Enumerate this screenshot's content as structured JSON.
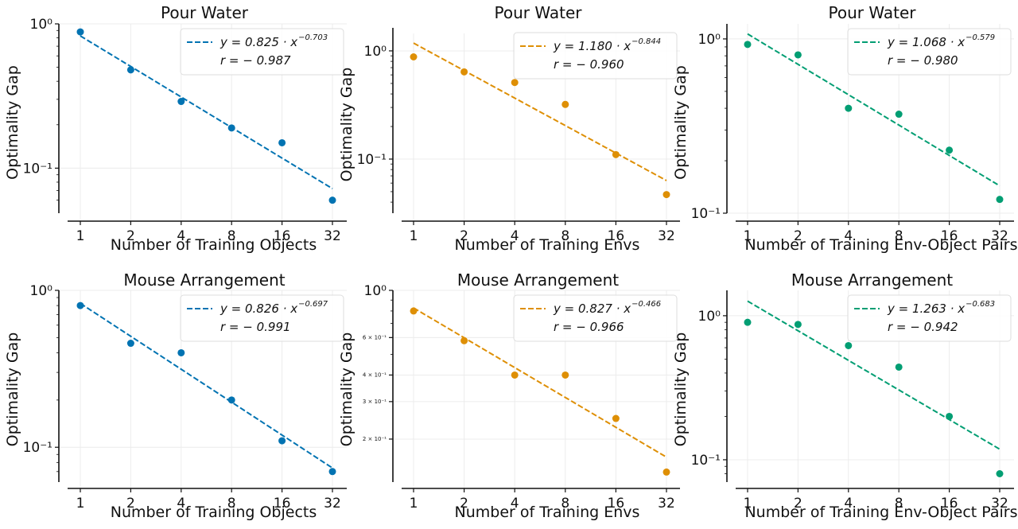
{
  "chart_data": [
    {
      "type": "scatter",
      "title": "Pour Water",
      "xlabel": "Number of Training Objects",
      "ylabel": "Optimality Gap",
      "x": [
        1,
        2,
        4,
        8,
        16,
        32
      ],
      "x_scale": "log2",
      "y_scale": "log10",
      "ylim": [
        0.05,
        1.0
      ],
      "color": "#0173b2",
      "series": [
        {
          "kind": "points",
          "values": [
            0.88,
            0.48,
            0.29,
            0.19,
            0.15,
            0.06
          ]
        },
        {
          "kind": "fit",
          "style": "dashed",
          "coefficient": 0.825,
          "exponent": -0.703
        }
      ],
      "legend": {
        "placement": "top-right",
        "fit_text": "y = 0.825 · x",
        "exponent_text": "−0.703",
        "r_text": "r = − 0.987"
      },
      "yticks": [
        {
          "value": 1.0,
          "label": "10⁰"
        },
        {
          "value": 0.1,
          "label": "10⁻¹"
        }
      ],
      "grid": true
    },
    {
      "type": "scatter",
      "title": "Pour Water",
      "xlabel": "Number of Training Envs",
      "ylabel": "Optimality Gap",
      "x": [
        1,
        2,
        4,
        8,
        16,
        32
      ],
      "x_scale": "log2",
      "y_scale": "log10",
      "ylim": [
        0.035,
        1.45
      ],
      "color": "#de8f05",
      "series": [
        {
          "kind": "points",
          "values": [
            0.88,
            0.64,
            0.51,
            0.32,
            0.11,
            0.047
          ]
        },
        {
          "kind": "fit",
          "style": "dashed",
          "coefficient": 1.18,
          "exponent": -0.844
        }
      ],
      "legend": {
        "placement": "top-right",
        "fit_text": "y = 1.180 · x",
        "exponent_text": "−0.844",
        "r_text": "r = − 0.960"
      },
      "yticks": [
        {
          "value": 1.0,
          "label": "10⁰"
        },
        {
          "value": 0.1,
          "label": "10⁻¹"
        }
      ],
      "grid": true
    },
    {
      "type": "scatter",
      "title": "Pour Water",
      "xlabel": "Number of Training Env-Object Pairs",
      "ylabel": "Optimality Gap",
      "x": [
        1,
        2,
        4,
        8,
        16,
        32
      ],
      "x_scale": "log2",
      "y_scale": "log10",
      "ylim": [
        0.1,
        1.22
      ],
      "color": "#029e73",
      "series": [
        {
          "kind": "points",
          "values": [
            0.93,
            0.81,
            0.4,
            0.37,
            0.23,
            0.12
          ]
        },
        {
          "kind": "fit",
          "style": "dashed",
          "coefficient": 1.068,
          "exponent": -0.579
        }
      ],
      "legend": {
        "placement": "top-right",
        "fit_text": "y = 1.068 · x",
        "exponent_text": "−0.579",
        "r_text": "r = − 0.980"
      },
      "yticks": [
        {
          "value": 1.0,
          "label": "10⁰"
        },
        {
          "value": 0.1,
          "label": "10⁻¹"
        }
      ],
      "grid": true
    },
    {
      "type": "scatter",
      "title": "Mouse Arrangement",
      "xlabel": "Number of Training Objects",
      "ylabel": "Optimality Gap",
      "x": [
        1,
        2,
        4,
        8,
        16,
        32
      ],
      "x_scale": "log2",
      "y_scale": "log10",
      "ylim": [
        0.06,
        1.0
      ],
      "color": "#0173b2",
      "series": [
        {
          "kind": "points",
          "values": [
            0.8,
            0.46,
            0.4,
            0.2,
            0.11,
            0.07
          ]
        },
        {
          "kind": "fit",
          "style": "dashed",
          "coefficient": 0.826,
          "exponent": -0.697
        }
      ],
      "legend": {
        "placement": "top-right",
        "fit_text": "y = 0.826 · x",
        "exponent_text": "−0.697",
        "r_text": "r = − 0.991"
      },
      "yticks": [
        {
          "value": 1.0,
          "label": "10⁰"
        },
        {
          "value": 0.1,
          "label": "10⁻¹"
        }
      ],
      "grid": true
    },
    {
      "type": "scatter",
      "title": "Mouse Arrangement",
      "xlabel": "Number of Training Envs",
      "ylabel": "Optimality Gap",
      "x": [
        1,
        2,
        4,
        8,
        16,
        32
      ],
      "x_scale": "log10",
      "y_scale": "log10",
      "ylim": [
        0.13,
        1.0
      ],
      "color": "#de8f05",
      "series": [
        {
          "kind": "points",
          "values": [
            0.8,
            0.58,
            0.4,
            0.4,
            0.25,
            0.14
          ]
        },
        {
          "kind": "fit",
          "style": "dashed",
          "coefficient": 0.827,
          "exponent": -0.466
        }
      ],
      "legend": {
        "placement": "top-right",
        "fit_text": "y = 0.827 · x",
        "exponent_text": "−0.466",
        "r_text": "r = − 0.966"
      },
      "yticks": [
        {
          "value": 1.0,
          "label": "10⁰",
          "small": false
        },
        {
          "value": 0.6,
          "label": "6 × 10⁻¹",
          "small": true
        },
        {
          "value": 0.4,
          "label": "4 × 10⁻¹",
          "small": true
        },
        {
          "value": 0.3,
          "label": "3 × 10⁻¹",
          "small": true
        },
        {
          "value": 0.2,
          "label": "2 × 10⁻¹",
          "small": true
        }
      ],
      "grid": true
    },
    {
      "type": "scatter",
      "title": "Mouse Arrangement",
      "xlabel": "Number of Training Env-Object Pairs",
      "ylabel": "Optimality Gap",
      "x": [
        1,
        2,
        4,
        8,
        16,
        32
      ],
      "x_scale": "log2",
      "y_scale": "log10",
      "ylim": [
        0.07,
        1.5
      ],
      "color": "#029e73",
      "series": [
        {
          "kind": "points",
          "values": [
            0.9,
            0.87,
            0.62,
            0.44,
            0.2,
            0.08
          ]
        },
        {
          "kind": "fit",
          "style": "dashed",
          "coefficient": 1.263,
          "exponent": -0.683
        }
      ],
      "legend": {
        "placement": "top-right",
        "fit_text": "y = 1.263 · x",
        "exponent_text": "−0.683",
        "r_text": "r = − 0.942"
      },
      "yticks": [
        {
          "value": 1.0,
          "label": "10⁰"
        },
        {
          "value": 0.1,
          "label": "10⁻¹"
        }
      ],
      "grid": true
    }
  ]
}
